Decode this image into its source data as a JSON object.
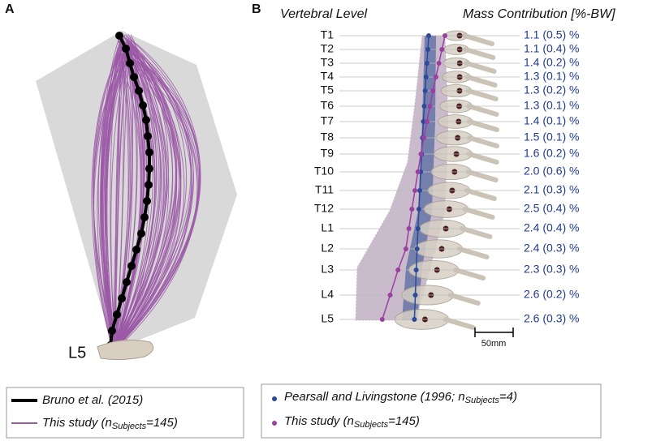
{
  "panel_a": {
    "label": "A",
    "level_label": "L5"
  },
  "panel_b": {
    "label": "B",
    "col_level": "Vertebral Level",
    "col_mass": "Mass Contribution [%-BW]",
    "rows": [
      {
        "level": "T1",
        "mass": "1.1 (0.5) %"
      },
      {
        "level": "T2",
        "mass": "1.1 (0.4) %"
      },
      {
        "level": "T3",
        "mass": "1.4 (0.2) %"
      },
      {
        "level": "T4",
        "mass": "1.3 (0.1) %"
      },
      {
        "level": "T5",
        "mass": "1.3 (0.2) %"
      },
      {
        "level": "T6",
        "mass": "1.3 (0.1) %"
      },
      {
        "level": "T7",
        "mass": "1.4 (0.1) %"
      },
      {
        "level": "T8",
        "mass": "1.5 (0.1) %"
      },
      {
        "level": "T9",
        "mass": "1.6 (0.2) %"
      },
      {
        "level": "T10",
        "mass": "2.0 (0.6) %"
      },
      {
        "level": "T11",
        "mass": "2.1 (0.3) %"
      },
      {
        "level": "T12",
        "mass": "2.5 (0.4) %"
      },
      {
        "level": "L1",
        "mass": "2.4 (0.4) %"
      },
      {
        "level": "L2",
        "mass": "2.4 (0.3) %"
      },
      {
        "level": "L3",
        "mass": "2.3 (0.3) %"
      },
      {
        "level": "L4",
        "mass": "2.6 (0.2) %"
      },
      {
        "level": "L5",
        "mass": "2.6 (0.3) %"
      }
    ],
    "scale_label": "50mm"
  },
  "legend_a": [
    {
      "text": "Bruno et al. (2015)"
    },
    {
      "text": "This study (n",
      "sub": "Subjects",
      "tail": "=145)"
    }
  ],
  "legend_b": [
    {
      "text": "Pearsall and Livingstone (1996; n",
      "sub": "Subjects",
      "tail": "=4)"
    },
    {
      "text": "This study (n",
      "sub": "Subjects",
      "tail": "=145)"
    }
  ]
}
